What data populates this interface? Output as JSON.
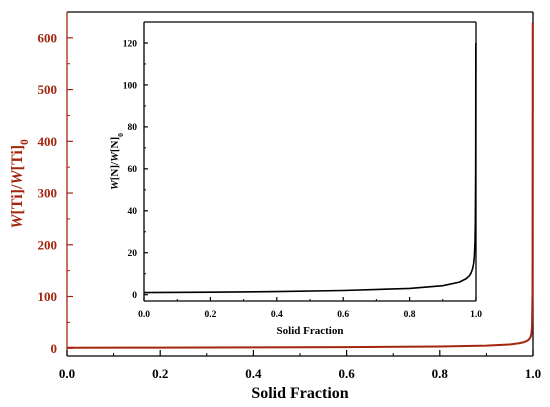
{
  "chart_data": [
    {
      "type": "line",
      "role": "main",
      "xlabel": "Solid Fraction",
      "ylabel_parts": [
        {
          "text": "W",
          "italic": true
        },
        {
          "text": "[Ti]/",
          "italic": false
        },
        {
          "text": "W",
          "italic": true
        },
        {
          "text": "[Ti]",
          "italic": false
        },
        {
          "text": "0",
          "italic": false,
          "sub": true
        }
      ],
      "xlim": [
        0.0,
        1.0
      ],
      "ylim": [
        -15,
        650
      ],
      "xticks": [
        0.0,
        0.2,
        0.4,
        0.6,
        0.8,
        1.0
      ],
      "xtick_labels": [
        "0.0",
        "0.2",
        "0.4",
        "0.6",
        "0.8",
        "1.0"
      ],
      "yticks": [
        0,
        100,
        200,
        300,
        400,
        500,
        600
      ],
      "ytick_labels": [
        "0",
        "100",
        "200",
        "300",
        "400",
        "500",
        "600"
      ],
      "series": [
        {
          "color": "#a3250f",
          "x": [
            0.0,
            0.2,
            0.4,
            0.6,
            0.8,
            0.9,
            0.95,
            0.97,
            0.98,
            0.985,
            0.99,
            0.993,
            0.995,
            0.997,
            0.998,
            0.999,
            0.9995
          ],
          "y": [
            1.0,
            1.25,
            1.6,
            2.2,
            3.4,
            5.0,
            7.3,
            9.6,
            11.6,
            13.3,
            16.0,
            19.0,
            22.0,
            30.0,
            45.0,
            110.0,
            630.0
          ]
        }
      ]
    },
    {
      "type": "line",
      "role": "inset",
      "xlabel": "Solid Fraction",
      "ylabel_parts": [
        {
          "text": "W",
          "italic": true
        },
        {
          "text": "[N]/",
          "italic": false
        },
        {
          "text": "W",
          "italic": true
        },
        {
          "text": "[N]",
          "italic": false
        },
        {
          "text": "0",
          "italic": false,
          "sub": true
        }
      ],
      "xlim": [
        0.0,
        1.0
      ],
      "ylim": [
        -3,
        130
      ],
      "xticks": [
        0.0,
        0.2,
        0.4,
        0.6,
        0.8,
        1.0
      ],
      "xtick_labels": [
        "0.0",
        "0.2",
        "0.4",
        "0.6",
        "0.8",
        "1.0"
      ],
      "yticks": [
        0,
        20,
        40,
        60,
        80,
        100,
        120
      ],
      "ytick_labels": [
        "0",
        "20",
        "40",
        "60",
        "80",
        "100",
        "120"
      ],
      "series": [
        {
          "color": "#000000",
          "x": [
            0.0,
            0.2,
            0.4,
            0.6,
            0.8,
            0.9,
            0.95,
            0.97,
            0.98,
            0.985,
            0.99,
            0.993,
            0.995,
            0.997,
            0.998,
            0.999,
            0.9995
          ],
          "y": [
            1.0,
            1.2,
            1.5,
            2.0,
            3.0,
            4.3,
            6.0,
            7.6,
            9.0,
            10.3,
            12.5,
            15.0,
            18.0,
            25.0,
            35.0,
            60.0,
            120.0
          ]
        }
      ]
    }
  ]
}
